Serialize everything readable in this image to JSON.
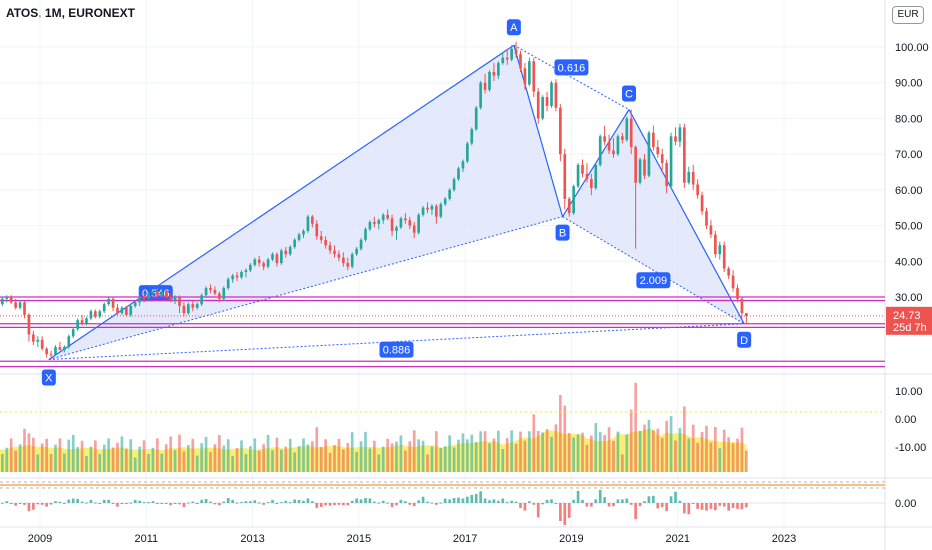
{
  "header": {
    "title": "ATOS, 1M, EURONEXT",
    "currency": "EUR"
  },
  "price_axis": {
    "labels": [
      "100.00",
      "90.00",
      "80.00",
      "70.00",
      "60.00",
      "50.00",
      "40.00",
      "30.00"
    ],
    "last_price": "24.73",
    "countdown": "25d 7h"
  },
  "volume_axis": {
    "labels": [
      "10.00",
      "0.00",
      "-10.00"
    ]
  },
  "macd_axis": {
    "labels": [
      "0.00"
    ]
  },
  "time_axis": {
    "labels": [
      "2009",
      "2011",
      "2013",
      "2015",
      "2017",
      "2019",
      "2021",
      "2023"
    ]
  },
  "colors": {
    "up": "#26a69a",
    "down": "#ef5350",
    "pattern_line": "#2962ff",
    "pattern_fill": "#dfe5fb",
    "level_line": "#cc2ebd",
    "volume_area": "#f6e84b",
    "last_price_badge": "#ef5350"
  },
  "chart_data": {
    "type": "candlestick",
    "title": "ATOS, 1M, EURONEXT",
    "pattern": {
      "points": [
        {
          "label": "X",
          "date": "2009-03",
          "price": 12.5
        },
        {
          "label": "A",
          "date": "2017-12",
          "price": 100.5
        },
        {
          "label": "B",
          "date": "2018-11",
          "price": 52.5
        },
        {
          "label": "C",
          "date": "2020-02",
          "price": 82.5
        },
        {
          "label": "D",
          "date": "2022-04",
          "price": 22.5
        }
      ],
      "ratios": [
        {
          "value": "0.546",
          "between": "X-B"
        },
        {
          "value": "0.616",
          "between": "A-C"
        },
        {
          "value": "2.009",
          "between": "B-D"
        },
        {
          "value": "0.886",
          "between": "X-D"
        }
      ]
    },
    "horizontal_levels": [
      30.0,
      29.0,
      22.5,
      21.5,
      12.0,
      10.5
    ],
    "y_range": [
      10,
      104
    ],
    "x_range": [
      "2008-01",
      "2024-04"
    ],
    "candles": [
      [
        "2008-01",
        32.5,
        32.5,
        29.5,
        30.0
      ],
      [
        "2008-02",
        30.0,
        31.0,
        28.5,
        29.2
      ],
      [
        "2008-03",
        29.2,
        30.5,
        27.0,
        28.0
      ],
      [
        "2008-04",
        28.0,
        30.0,
        27.5,
        29.5
      ],
      [
        "2008-05",
        29.5,
        30.5,
        28.5,
        30.0
      ],
      [
        "2008-06",
        30.0,
        30.5,
        28.0,
        28.5
      ],
      [
        "2008-07",
        28.5,
        29.5,
        26.5,
        27.0
      ],
      [
        "2008-08",
        27.0,
        29.0,
        26.5,
        28.5
      ],
      [
        "2008-09",
        28.5,
        29.0,
        24.0,
        25.0
      ],
      [
        "2008-10",
        25.0,
        25.5,
        17.5,
        19.5
      ],
      [
        "2008-11",
        19.5,
        20.5,
        16.5,
        17.5
      ],
      [
        "2008-12",
        17.5,
        19.0,
        16.0,
        18.0
      ],
      [
        "2009-01",
        18.0,
        19.0,
        15.0,
        15.5
      ],
      [
        "2009-02",
        15.5,
        16.0,
        13.0,
        14.0
      ],
      [
        "2009-03",
        14.0,
        15.0,
        12.5,
        13.8
      ],
      [
        "2009-04",
        13.8,
        16.5,
        13.5,
        16.0
      ],
      [
        "2009-05",
        16.0,
        17.5,
        15.0,
        15.2
      ],
      [
        "2009-06",
        15.2,
        16.5,
        14.5,
        16.0
      ],
      [
        "2009-07",
        16.0,
        19.5,
        15.5,
        19.0
      ],
      [
        "2009-08",
        19.0,
        21.5,
        18.5,
        21.0
      ],
      [
        "2009-09",
        21.0,
        24.0,
        20.5,
        23.5
      ],
      [
        "2009-10",
        23.5,
        25.0,
        22.0,
        22.5
      ],
      [
        "2009-11",
        22.5,
        24.5,
        22.0,
        24.0
      ],
      [
        "2009-12",
        24.0,
        26.5,
        23.5,
        26.0
      ],
      [
        "2010-01",
        26.0,
        26.5,
        24.0,
        24.5
      ],
      [
        "2010-02",
        24.5,
        26.5,
        24.0,
        26.0
      ],
      [
        "2010-03",
        26.0,
        28.5,
        25.5,
        28.0
      ],
      [
        "2010-04",
        28.0,
        30.0,
        27.5,
        29.5
      ],
      [
        "2010-05",
        29.5,
        30.0,
        26.0,
        27.0
      ],
      [
        "2010-06",
        27.0,
        28.0,
        25.0,
        25.5
      ],
      [
        "2010-07",
        25.5,
        27.5,
        25.0,
        27.0
      ],
      [
        "2010-08",
        27.0,
        27.5,
        24.5,
        25.0
      ],
      [
        "2010-09",
        25.0,
        28.0,
        24.5,
        27.5
      ],
      [
        "2010-10",
        27.5,
        29.0,
        27.0,
        28.5
      ],
      [
        "2010-11",
        28.5,
        30.5,
        27.5,
        30.0
      ],
      [
        "2010-12",
        30.0,
        31.0,
        28.5,
        29.5
      ],
      [
        "2011-01",
        29.5,
        31.5,
        29.0,
        31.0
      ],
      [
        "2011-02",
        31.0,
        32.0,
        30.0,
        31.5
      ],
      [
        "2011-03",
        31.5,
        32.5,
        30.0,
        30.5
      ],
      [
        "2011-04",
        30.5,
        32.0,
        30.0,
        31.5
      ],
      [
        "2011-05",
        31.5,
        32.0,
        29.5,
        30.0
      ],
      [
        "2011-06",
        30.0,
        31.0,
        28.5,
        29.0
      ],
      [
        "2011-07",
        29.0,
        30.5,
        28.0,
        30.0
      ],
      [
        "2011-08",
        30.0,
        30.5,
        25.5,
        27.5
      ],
      [
        "2011-09",
        27.5,
        28.5,
        24.5,
        25.5
      ],
      [
        "2011-10",
        25.5,
        28.5,
        25.0,
        28.0
      ],
      [
        "2011-11",
        28.0,
        29.0,
        26.0,
        27.0
      ],
      [
        "2011-12",
        27.0,
        28.5,
        26.5,
        28.0
      ],
      [
        "2012-01",
        28.0,
        31.0,
        27.5,
        30.5
      ],
      [
        "2012-02",
        30.5,
        33.0,
        30.0,
        32.5
      ],
      [
        "2012-03",
        32.5,
        33.5,
        31.0,
        32.0
      ],
      [
        "2012-04",
        32.0,
        33.0,
        30.5,
        31.0
      ],
      [
        "2012-05",
        31.0,
        31.5,
        28.5,
        29.5
      ],
      [
        "2012-06",
        29.5,
        33.0,
        29.0,
        32.5
      ],
      [
        "2012-07",
        32.5,
        35.5,
        32.0,
        35.0
      ],
      [
        "2012-08",
        35.0,
        36.5,
        34.0,
        36.0
      ],
      [
        "2012-09",
        36.0,
        37.0,
        34.5,
        35.5
      ],
      [
        "2012-10",
        35.5,
        37.5,
        35.0,
        37.0
      ],
      [
        "2012-11",
        37.0,
        38.0,
        35.5,
        37.5
      ],
      [
        "2012-12",
        37.5,
        39.5,
        37.0,
        39.0
      ],
      [
        "2013-01",
        39.0,
        41.0,
        38.5,
        40.5
      ],
      [
        "2013-02",
        40.5,
        41.5,
        38.5,
        39.5
      ],
      [
        "2013-03",
        39.5,
        40.0,
        37.5,
        38.5
      ],
      [
        "2013-04",
        38.5,
        41.0,
        38.0,
        40.5
      ],
      [
        "2013-05",
        40.5,
        42.5,
        40.0,
        42.0
      ],
      [
        "2013-06",
        42.0,
        42.5,
        38.5,
        39.5
      ],
      [
        "2013-07",
        39.5,
        43.5,
        39.0,
        43.0
      ],
      [
        "2013-08",
        43.0,
        44.0,
        41.0,
        42.0
      ],
      [
        "2013-09",
        42.0,
        44.5,
        41.5,
        44.0
      ],
      [
        "2013-10",
        44.0,
        46.5,
        43.5,
        46.0
      ],
      [
        "2013-11",
        46.0,
        48.0,
        45.5,
        47.5
      ],
      [
        "2013-12",
        47.5,
        49.0,
        46.5,
        48.5
      ],
      [
        "2014-01",
        48.5,
        53.0,
        48.0,
        52.5
      ],
      [
        "2014-02",
        52.5,
        53.0,
        49.5,
        50.5
      ],
      [
        "2014-03",
        50.5,
        51.5,
        46.0,
        47.0
      ],
      [
        "2014-04",
        47.0,
        48.5,
        45.0,
        46.0
      ],
      [
        "2014-05",
        46.0,
        47.0,
        43.5,
        44.5
      ],
      [
        "2014-06",
        44.5,
        45.5,
        42.0,
        43.0
      ],
      [
        "2014-07",
        43.0,
        44.5,
        41.0,
        42.0
      ],
      [
        "2014-08",
        42.0,
        43.0,
        40.0,
        41.0
      ],
      [
        "2014-09",
        41.0,
        42.5,
        38.5,
        39.5
      ],
      [
        "2014-10",
        39.5,
        41.0,
        37.5,
        38.5
      ],
      [
        "2014-11",
        38.5,
        42.5,
        38.0,
        42.0
      ],
      [
        "2014-12",
        42.0,
        44.0,
        41.5,
        43.5
      ],
      [
        "2015-01",
        43.5,
        46.5,
        43.0,
        46.0
      ],
      [
        "2015-02",
        46.0,
        49.5,
        45.5,
        49.0
      ],
      [
        "2015-03",
        49.0,
        51.5,
        48.5,
        51.0
      ],
      [
        "2015-04",
        51.0,
        52.5,
        49.5,
        50.5
      ],
      [
        "2015-05",
        50.5,
        52.0,
        49.0,
        51.5
      ],
      [
        "2015-06",
        51.5,
        53.5,
        50.5,
        53.0
      ],
      [
        "2015-07",
        53.0,
        54.5,
        51.5,
        52.0
      ],
      [
        "2015-08",
        52.0,
        53.0,
        47.0,
        48.5
      ],
      [
        "2015-09",
        48.5,
        50.0,
        46.0,
        49.5
      ],
      [
        "2015-10",
        49.5,
        52.5,
        49.0,
        52.0
      ],
      [
        "2015-11",
        52.0,
        53.5,
        50.5,
        51.5
      ],
      [
        "2015-12",
        51.5,
        52.5,
        49.0,
        50.0
      ],
      [
        "2016-01",
        50.0,
        51.0,
        46.5,
        48.0
      ],
      [
        "2016-02",
        48.0,
        53.5,
        47.5,
        53.0
      ],
      [
        "2016-03",
        53.0,
        55.5,
        52.5,
        55.0
      ],
      [
        "2016-04",
        55.0,
        56.5,
        53.5,
        54.5
      ],
      [
        "2016-05",
        54.5,
        56.0,
        53.0,
        55.5
      ],
      [
        "2016-06",
        55.5,
        56.0,
        50.5,
        52.5
      ],
      [
        "2016-07",
        52.5,
        56.5,
        52.0,
        56.0
      ],
      [
        "2016-08",
        56.0,
        58.0,
        55.5,
        57.5
      ],
      [
        "2016-09",
        57.5,
        60.5,
        57.0,
        60.0
      ],
      [
        "2016-10",
        60.0,
        63.5,
        59.5,
        63.0
      ],
      [
        "2016-11",
        63.0,
        66.5,
        62.5,
        66.0
      ],
      [
        "2016-12",
        66.0,
        68.5,
        65.0,
        68.0
      ],
      [
        "2017-01",
        68.0,
        73.5,
        67.5,
        73.0
      ],
      [
        "2017-02",
        73.0,
        77.5,
        72.5,
        77.0
      ],
      [
        "2017-03",
        77.0,
        83.5,
        76.5,
        83.0
      ],
      [
        "2017-04",
        83.0,
        90.5,
        82.5,
        90.0
      ],
      [
        "2017-05",
        90.0,
        92.5,
        87.0,
        88.0
      ],
      [
        "2017-06",
        88.0,
        93.5,
        87.5,
        93.0
      ],
      [
        "2017-07",
        93.0,
        95.5,
        90.5,
        92.0
      ],
      [
        "2017-08",
        92.0,
        96.0,
        91.0,
        95.5
      ],
      [
        "2017-09",
        95.5,
        98.5,
        95.0,
        97.0
      ],
      [
        "2017-10",
        97.0,
        99.5,
        95.0,
        96.5
      ],
      [
        "2017-11",
        96.5,
        100.5,
        96.0,
        99.5
      ],
      [
        "2017-12",
        99.5,
        101.5,
        97.0,
        98.0
      ],
      [
        "2018-01",
        98.0,
        99.0,
        93.0,
        94.0
      ],
      [
        "2018-02",
        94.0,
        95.5,
        88.0,
        89.5
      ],
      [
        "2018-03",
        89.5,
        97.0,
        89.0,
        96.0
      ],
      [
        "2018-04",
        96.0,
        97.0,
        86.0,
        87.5
      ],
      [
        "2018-05",
        87.5,
        88.5,
        78.5,
        80.0
      ],
      [
        "2018-06",
        80.0,
        86.5,
        79.5,
        86.0
      ],
      [
        "2018-07",
        86.0,
        87.5,
        82.0,
        83.5
      ],
      [
        "2018-08",
        83.5,
        90.5,
        83.0,
        90.0
      ],
      [
        "2018-09",
        90.0,
        91.0,
        82.0,
        83.0
      ],
      [
        "2018-10",
        83.0,
        84.0,
        68.0,
        70.0
      ],
      [
        "2018-11",
        70.0,
        71.5,
        54.5,
        57.5
      ],
      [
        "2018-12",
        57.5,
        58.0,
        52.5,
        53.5
      ],
      [
        "2019-01",
        53.5,
        61.5,
        53.0,
        61.0
      ],
      [
        "2019-02",
        61.0,
        67.5,
        60.5,
        67.0
      ],
      [
        "2019-03",
        67.0,
        68.5,
        63.5,
        64.5
      ],
      [
        "2019-04",
        64.5,
        67.5,
        62.0,
        63.0
      ],
      [
        "2019-05",
        63.0,
        64.5,
        58.5,
        60.5
      ],
      [
        "2019-06",
        60.5,
        67.5,
        60.0,
        67.0
      ],
      [
        "2019-07",
        67.0,
        75.5,
        66.5,
        75.0
      ],
      [
        "2019-08",
        75.0,
        78.0,
        72.5,
        73.5
      ],
      [
        "2019-09",
        73.5,
        75.5,
        70.0,
        71.0
      ],
      [
        "2019-10",
        71.0,
        74.5,
        69.0,
        70.0
      ],
      [
        "2019-11",
        70.0,
        75.5,
        69.5,
        75.0
      ],
      [
        "2019-12",
        75.0,
        76.0,
        73.0,
        74.0
      ],
      [
        "2020-01",
        74.0,
        80.5,
        73.5,
        80.0
      ],
      [
        "2020-02",
        80.0,
        82.5,
        70.0,
        72.0
      ],
      [
        "2020-03",
        72.0,
        72.5,
        43.5,
        62.0
      ],
      [
        "2020-04",
        62.0,
        69.0,
        61.5,
        68.5
      ],
      [
        "2020-05",
        68.5,
        70.0,
        63.0,
        64.0
      ],
      [
        "2020-06",
        64.0,
        76.5,
        63.5,
        76.0
      ],
      [
        "2020-07",
        76.0,
        78.0,
        71.0,
        72.0
      ],
      [
        "2020-08",
        72.0,
        74.0,
        69.0,
        70.0
      ],
      [
        "2020-09",
        70.0,
        71.5,
        65.0,
        67.5
      ],
      [
        "2020-10",
        67.5,
        68.5,
        59.0,
        61.0
      ],
      [
        "2020-11",
        61.0,
        76.0,
        60.5,
        75.0
      ],
      [
        "2020-12",
        75.0,
        77.5,
        72.5,
        73.5
      ],
      [
        "2021-01",
        73.5,
        78.5,
        72.0,
        77.5
      ],
      [
        "2021-02",
        77.5,
        78.5,
        60.5,
        62.0
      ],
      [
        "2021-03",
        62.0,
        66.5,
        61.5,
        65.0
      ],
      [
        "2021-04",
        65.0,
        67.0,
        60.0,
        61.5
      ],
      [
        "2021-05",
        61.5,
        63.0,
        57.5,
        58.5
      ],
      [
        "2021-06",
        58.5,
        59.5,
        53.0,
        54.0
      ],
      [
        "2021-07",
        54.0,
        55.0,
        49.0,
        50.0
      ],
      [
        "2021-08",
        50.0,
        51.5,
        46.5,
        47.5
      ],
      [
        "2021-09",
        47.5,
        48.5,
        41.0,
        42.0
      ],
      [
        "2021-10",
        42.0,
        45.5,
        40.5,
        44.5
      ],
      [
        "2021-11",
        44.5,
        45.5,
        37.0,
        38.0
      ],
      [
        "2021-12",
        38.0,
        38.5,
        35.0,
        36.0
      ],
      [
        "2022-01",
        36.0,
        37.5,
        31.5,
        32.5
      ],
      [
        "2022-02",
        32.5,
        33.5,
        28.5,
        29.5
      ],
      [
        "2022-03",
        29.5,
        30.0,
        24.0,
        25.5
      ],
      [
        "2022-04",
        25.5,
        25.5,
        22.5,
        24.73
      ]
    ],
    "volume_oscillator_note": "bars colored by candle direction, yellow area overlay",
    "volume_axis_range": [
      -19,
      14
    ],
    "macd_axis_range": [
      -1,
      1
    ]
  }
}
